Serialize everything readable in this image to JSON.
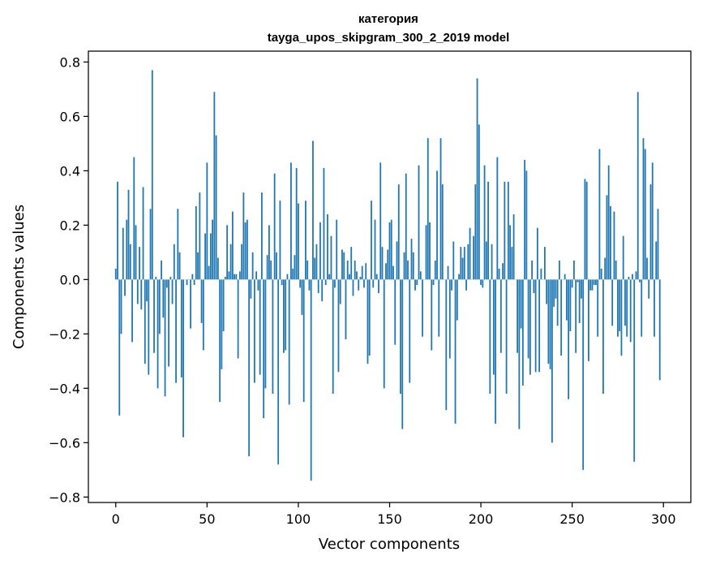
{
  "chart_data": {
    "type": "bar",
    "title_line1": "категория",
    "title_line2": "tayga_upos_skipgram_300_2_2019 model",
    "xlabel": "Vector components",
    "ylabel": "Components values",
    "xlim": [
      -15,
      315
    ],
    "ylim": [
      -0.82,
      0.84
    ],
    "xticks": [
      0,
      50,
      100,
      150,
      200,
      250,
      300
    ],
    "xtick_labels": [
      "0",
      "50",
      "100",
      "150",
      "200",
      "250",
      "300"
    ],
    "yticks": [
      -0.8,
      -0.6,
      -0.4,
      -0.2,
      0.0,
      0.2,
      0.4,
      0.6,
      0.8
    ],
    "ytick_labels": [
      "−0.8",
      "−0.6",
      "−0.4",
      "−0.2",
      "0.0",
      "0.2",
      "0.4",
      "0.6",
      "0.8"
    ],
    "bar_color": "#1f77b4",
    "values": [
      0.04,
      0.36,
      -0.5,
      -0.2,
      0.19,
      -0.06,
      0.22,
      0.33,
      0.13,
      -0.23,
      0.45,
      0.2,
      -0.09,
      0.12,
      -0.11,
      0.34,
      -0.31,
      -0.08,
      -0.35,
      0.26,
      0.77,
      -0.27,
      0.01,
      -0.4,
      -0.2,
      0.07,
      -0.14,
      -0.43,
      -0.03,
      -0.32,
      0.01,
      -0.09,
      0.13,
      -0.38,
      0.26,
      0.1,
      -0.36,
      -0.58,
      0.0,
      -0.02,
      0.0,
      -0.18,
      0.02,
      -0.02,
      0.27,
      0.1,
      0.32,
      -0.16,
      -0.26,
      0.17,
      0.43,
      0.05,
      0.17,
      0.22,
      0.69,
      0.53,
      0.08,
      -0.45,
      -0.33,
      -0.19,
      0.01,
      0.2,
      0.03,
      0.13,
      0.25,
      0.02,
      0.02,
      -0.29,
      0.03,
      0.13,
      0.32,
      0.21,
      0.22,
      -0.65,
      -0.07,
      0.1,
      -0.38,
      0.03,
      -0.04,
      -0.35,
      0.32,
      -0.51,
      -0.4,
      0.09,
      0.2,
      0.07,
      -0.42,
      0.39,
      0.1,
      -0.68,
      0.29,
      -0.02,
      -0.27,
      -0.26,
      0.02,
      -0.46,
      0.43,
      0.04,
      0.09,
      0.41,
      0.28,
      -0.03,
      -0.13,
      -0.45,
      0.29,
      0.07,
      -0.04,
      -0.74,
      0.51,
      0.08,
      0.13,
      -0.05,
      0.21,
      -0.08,
      0.41,
      -0.02,
      0.24,
      0.02,
      0.16,
      -0.42,
      -0.03,
      0.22,
      -0.34,
      -0.09,
      0.11,
      0.1,
      -0.22,
      0.07,
      0.02,
      0.12,
      -0.06,
      0.07,
      0.03,
      -0.04,
      0.01,
      0.05,
      -0.03,
      0.06,
      -0.31,
      -0.28,
      0.29,
      -0.03,
      0.22,
      0.02,
      -0.05,
      0.43,
      0.12,
      -0.4,
      0.06,
      0.11,
      0.21,
      0.22,
      0.05,
      -0.24,
      0.14,
      0.35,
      -0.42,
      -0.55,
      0.1,
      0.39,
      0.07,
      -0.38,
      0.15,
      0.1,
      -0.04,
      -0.02,
      0.42,
      0.03,
      -0.21,
      0.0,
      0.2,
      0.52,
      0.21,
      -0.26,
      -0.02,
      0.07,
      0.4,
      -0.21,
      0.52,
      0.35,
      0.0,
      -0.48,
      0.05,
      -0.29,
      -0.04,
      0.14,
      -0.53,
      -0.15,
      0.02,
      0.12,
      0.08,
      0.12,
      -0.04,
      0.13,
      0.19,
      0.0,
      0.16,
      0.35,
      0.74,
      0.57,
      -0.02,
      -0.03,
      0.42,
      0.14,
      0.36,
      -0.42,
      0.13,
      -0.35,
      -0.53,
      0.45,
      0.04,
      -0.27,
      0.06,
      0.36,
      -0.42,
      0.36,
      0.2,
      0.12,
      0.24,
      0.0,
      -0.27,
      -0.55,
      -0.18,
      -0.39,
      0.44,
      0.4,
      -0.29,
      -0.35,
      0.07,
      -0.05,
      -0.34,
      0.19,
      -0.34,
      0.04,
      0.0,
      0.12,
      -0.09,
      -0.31,
      -0.33,
      -0.6,
      -0.1,
      -0.07,
      -0.17,
      0.07,
      -0.28,
      0.0,
      0.02,
      -0.15,
      -0.44,
      -0.19,
      -0.03,
      0.07,
      -0.27,
      -0.01,
      -0.16,
      -0.07,
      -0.7,
      0.37,
      0.36,
      -0.3,
      -0.04,
      -0.04,
      -0.02,
      -0.02,
      -0.21,
      0.48,
      0.04,
      -0.42,
      0.08,
      0.31,
      0.42,
      0.27,
      -0.17,
      0.25,
      0.07,
      -0.21,
      -0.19,
      -0.28,
      0.16,
      -0.17,
      -0.21,
      0.01,
      -0.23,
      0.02,
      -0.67,
      0.03,
      0.69,
      -0.01,
      -0.21,
      0.52,
      0.48,
      0.08,
      -0.07,
      0.35,
      0.43,
      -0.21,
      0.14,
      0.26,
      -0.37
    ]
  }
}
